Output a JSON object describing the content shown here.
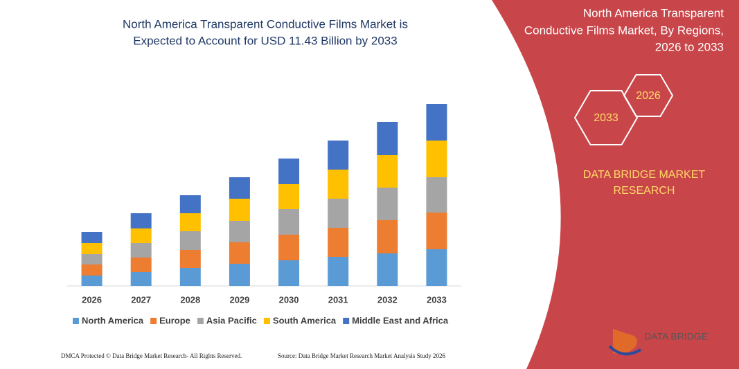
{
  "chart_data": {
    "type": "stacked-bar",
    "title": [
      "North America Transparent Conductive Films Market is",
      "Expected to Account for USD 11.43 Billion by 2033"
    ],
    "categories": [
      "2026",
      "2027",
      "2028",
      "2029",
      "2030",
      "2031",
      "2032",
      "2033"
    ],
    "series": [
      {
        "name": "North America",
        "color": "#5b9bd5",
        "values": [
          15,
          20,
          26,
          32,
          37,
          42,
          47,
          53
        ]
      },
      {
        "name": "Europe",
        "color": "#ed7d31",
        "values": [
          16,
          21,
          26,
          31,
          37,
          42,
          48,
          53
        ]
      },
      {
        "name": "Asia Pacific",
        "color": "#a5a5a5",
        "values": [
          15,
          21,
          27,
          31,
          37,
          42,
          47,
          51
        ]
      },
      {
        "name": "South America",
        "color": "#ffc000",
        "values": [
          16,
          21,
          26,
          32,
          36,
          42,
          47,
          53
        ]
      },
      {
        "name": "Middle East and Africa",
        "color": "#4472c4",
        "values": [
          16,
          22,
          26,
          31,
          37,
          42,
          48,
          53
        ]
      }
    ]
  },
  "panel": {
    "title": [
      "North America Transparent",
      "Conductive Films Market, By Regions,",
      "2026 to 2033"
    ],
    "hex_start": "2026",
    "hex_end": "2033",
    "brand": [
      "DATA BRIDGE MARKET",
      "RESEARCH"
    ],
    "logo": "DATA BRIDGE"
  },
  "footer": {
    "left": "DMCA Protected © Data Bridge Market Research-  All Rights Reserved.",
    "right": "Source: Data Bridge Market Research  Market Analysis Study 2026"
  }
}
